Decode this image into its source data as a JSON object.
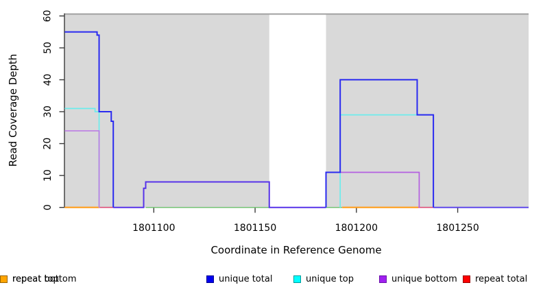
{
  "figure": {
    "xlabel": "Coordinate in Reference Genome",
    "ylabel": "Read Coverage Depth"
  },
  "legend": {
    "items": [
      {
        "label": "unique total",
        "color": "#0000ee",
        "border": "#000090"
      },
      {
        "label": "unique top",
        "color": "#00ffff",
        "border": "#009a9a"
      },
      {
        "label": "unique bottom",
        "color": "#a020f0",
        "border": "#6a12a8"
      },
      {
        "label": "repeat total",
        "color": "#ff0000",
        "border": "#990000"
      },
      {
        "label": "repeat top",
        "color": "#ffff00",
        "border": "#9a9a00"
      },
      {
        "label": "repeat bottom",
        "color": "#ffa500",
        "border": "#9a6400"
      }
    ]
  },
  "chart_data": {
    "type": "line",
    "title": "",
    "xlabel": "Coordinate in Reference Genome",
    "ylabel": "Read Coverage Depth",
    "xlim": [
      1801056,
      1801285
    ],
    "ylim": [
      0,
      60
    ],
    "x_ticks": [
      1801100,
      1801150,
      1801200,
      1801250
    ],
    "y_ticks": [
      0,
      10,
      20,
      30,
      40,
      50,
      60
    ],
    "grid": false,
    "legend_position": "bottom",
    "background_color": "#ffffff",
    "shaded_regions": {
      "color": "#d9d9d9",
      "x_ranges": [
        [
          1801056,
          1801157
        ],
        [
          1801185,
          1801285
        ]
      ]
    },
    "unshaded_gap": [
      1801157,
      1801185
    ],
    "top_boundary_line": {
      "value": 60,
      "color": "#a0a0a0"
    },
    "axis_color": "#3a3a3a",
    "series": [
      {
        "name": "unique total",
        "color": "#0000ee",
        "points": [
          [
            1801056,
            55
          ],
          [
            1801072,
            55
          ],
          [
            1801072,
            54
          ],
          [
            1801073,
            54
          ],
          [
            1801073,
            30
          ],
          [
            1801079,
            30
          ],
          [
            1801079,
            27
          ],
          [
            1801080,
            27
          ],
          [
            1801080,
            0
          ],
          [
            1801095,
            0
          ],
          [
            1801095,
            6
          ],
          [
            1801096,
            6
          ],
          [
            1801096,
            8
          ],
          [
            1801157,
            8
          ],
          [
            1801157,
            0
          ],
          [
            1801185,
            0
          ],
          [
            1801185,
            11
          ],
          [
            1801192,
            11
          ],
          [
            1801192,
            40
          ],
          [
            1801230,
            40
          ],
          [
            1801230,
            29
          ],
          [
            1801238,
            29
          ],
          [
            1801238,
            0
          ],
          [
            1801285,
            0
          ]
        ]
      },
      {
        "name": "unique top",
        "color": "#00ffff",
        "points": [
          [
            1801056,
            31
          ],
          [
            1801071,
            31
          ],
          [
            1801071,
            30
          ],
          [
            1801073,
            30
          ],
          [
            1801073,
            0
          ],
          [
            1801192,
            0
          ],
          [
            1801192,
            29
          ],
          [
            1801238,
            29
          ],
          [
            1801238,
            0
          ]
        ]
      },
      {
        "name": "unique bottom",
        "color": "#a020f0",
        "points": [
          [
            1801056,
            24
          ],
          [
            1801073,
            24
          ],
          [
            1801073,
            0
          ],
          [
            1801095,
            0
          ],
          [
            1801095,
            6
          ],
          [
            1801096,
            6
          ],
          [
            1801096,
            8
          ],
          [
            1801157,
            8
          ],
          [
            1801157,
            0
          ],
          [
            1801185,
            0
          ],
          [
            1801185,
            11
          ],
          [
            1801231,
            11
          ],
          [
            1801231,
            0
          ],
          [
            1801285,
            0
          ]
        ]
      },
      {
        "name": "repeat total",
        "color": "#ff0000",
        "points": [
          [
            1801073,
            0
          ],
          [
            1801080,
            0
          ],
          [
            1801231,
            0
          ],
          [
            1801238,
            0
          ]
        ]
      },
      {
        "name": "repeat top",
        "color": "#ffff00",
        "points": [
          [
            1801096,
            0
          ],
          [
            1801157,
            0
          ],
          [
            1801185,
            0
          ],
          [
            1801193,
            0
          ]
        ]
      },
      {
        "name": "repeat bottom",
        "color": "#ffa500",
        "points": [
          [
            1801056,
            0
          ],
          [
            1801073,
            0
          ],
          [
            1801193,
            0
          ],
          [
            1801230,
            0
          ]
        ]
      }
    ],
    "rendered_segments": [
      {
        "name": "baseline-green-mid",
        "color": "#74c274",
        "width": 1.5,
        "points": [
          [
            1801096,
            0
          ],
          [
            1801157,
            0
          ]
        ]
      },
      {
        "name": "baseline-green-right",
        "color": "#74c274",
        "width": 1.5,
        "points": [
          [
            1801185,
            0
          ],
          [
            1801193,
            0
          ]
        ]
      },
      {
        "name": "baseline-orange-left",
        "color": "#ff9d1c",
        "width": 2.2,
        "points": [
          [
            1801056,
            0
          ],
          [
            1801073,
            0
          ]
        ]
      },
      {
        "name": "baseline-orange-right",
        "color": "#ff9d1c",
        "width": 2.2,
        "points": [
          [
            1801193,
            0
          ],
          [
            1801230.5,
            0
          ]
        ]
      },
      {
        "name": "baseline-pink-left",
        "color": "#dd4e78",
        "width": 1.7,
        "points": [
          [
            1801073,
            0
          ],
          [
            1801080,
            0
          ]
        ]
      },
      {
        "name": "baseline-pink-right",
        "color": "#dd4e78",
        "width": 1.7,
        "points": [
          [
            1801230.5,
            0
          ],
          [
            1801238,
            0
          ]
        ]
      },
      {
        "name": "cyan-left",
        "color": "#6cecec",
        "width": 1.7,
        "points": [
          [
            1801056,
            31
          ],
          [
            1801071,
            31
          ],
          [
            1801071,
            30
          ],
          [
            1801073,
            30
          ],
          [
            1801073,
            0
          ]
        ]
      },
      {
        "name": "cyan-right",
        "color": "#6cecec",
        "width": 1.7,
        "points": [
          [
            1801192,
            0
          ],
          [
            1801192,
            29
          ],
          [
            1801238,
            29
          ]
        ]
      },
      {
        "name": "purple-left",
        "color": "#bc7ce4",
        "width": 1.7,
        "points": [
          [
            1801056,
            24
          ],
          [
            1801073,
            24
          ],
          [
            1801073,
            0
          ]
        ]
      },
      {
        "name": "purple-right",
        "color": "#b45fe0",
        "width": 1.7,
        "points": [
          [
            1801185,
            11
          ],
          [
            1801231,
            11
          ],
          [
            1801231,
            0
          ]
        ]
      },
      {
        "name": "violet-mid",
        "color": "#5632e9",
        "width": 2.0,
        "points": [
          [
            1801080,
            0
          ],
          [
            1801095,
            0
          ],
          [
            1801095,
            6
          ],
          [
            1801096,
            6
          ],
          [
            1801096,
            8
          ],
          [
            1801157,
            8
          ],
          [
            1801157,
            0
          ],
          [
            1801185,
            0
          ]
        ]
      },
      {
        "name": "violet-right",
        "color": "#5f48ea",
        "width": 2.0,
        "points": [
          [
            1801238,
            0
          ],
          [
            1801285,
            0
          ]
        ]
      },
      {
        "name": "blue-left",
        "color": "#2a2af0",
        "width": 2.0,
        "points": [
          [
            1801056,
            55
          ],
          [
            1801072,
            55
          ],
          [
            1801072,
            54
          ],
          [
            1801073,
            54
          ],
          [
            1801073,
            30
          ],
          [
            1801079,
            30
          ],
          [
            1801079,
            27
          ],
          [
            1801080,
            27
          ],
          [
            1801080,
            0
          ]
        ]
      },
      {
        "name": "blue-right",
        "color": "#2a2af0",
        "width": 2.0,
        "points": [
          [
            1801185,
            0
          ],
          [
            1801185,
            11
          ],
          [
            1801192,
            11
          ],
          [
            1801192,
            40
          ],
          [
            1801230,
            40
          ],
          [
            1801230,
            29
          ],
          [
            1801238,
            29
          ],
          [
            1801238,
            0
          ]
        ]
      }
    ]
  }
}
